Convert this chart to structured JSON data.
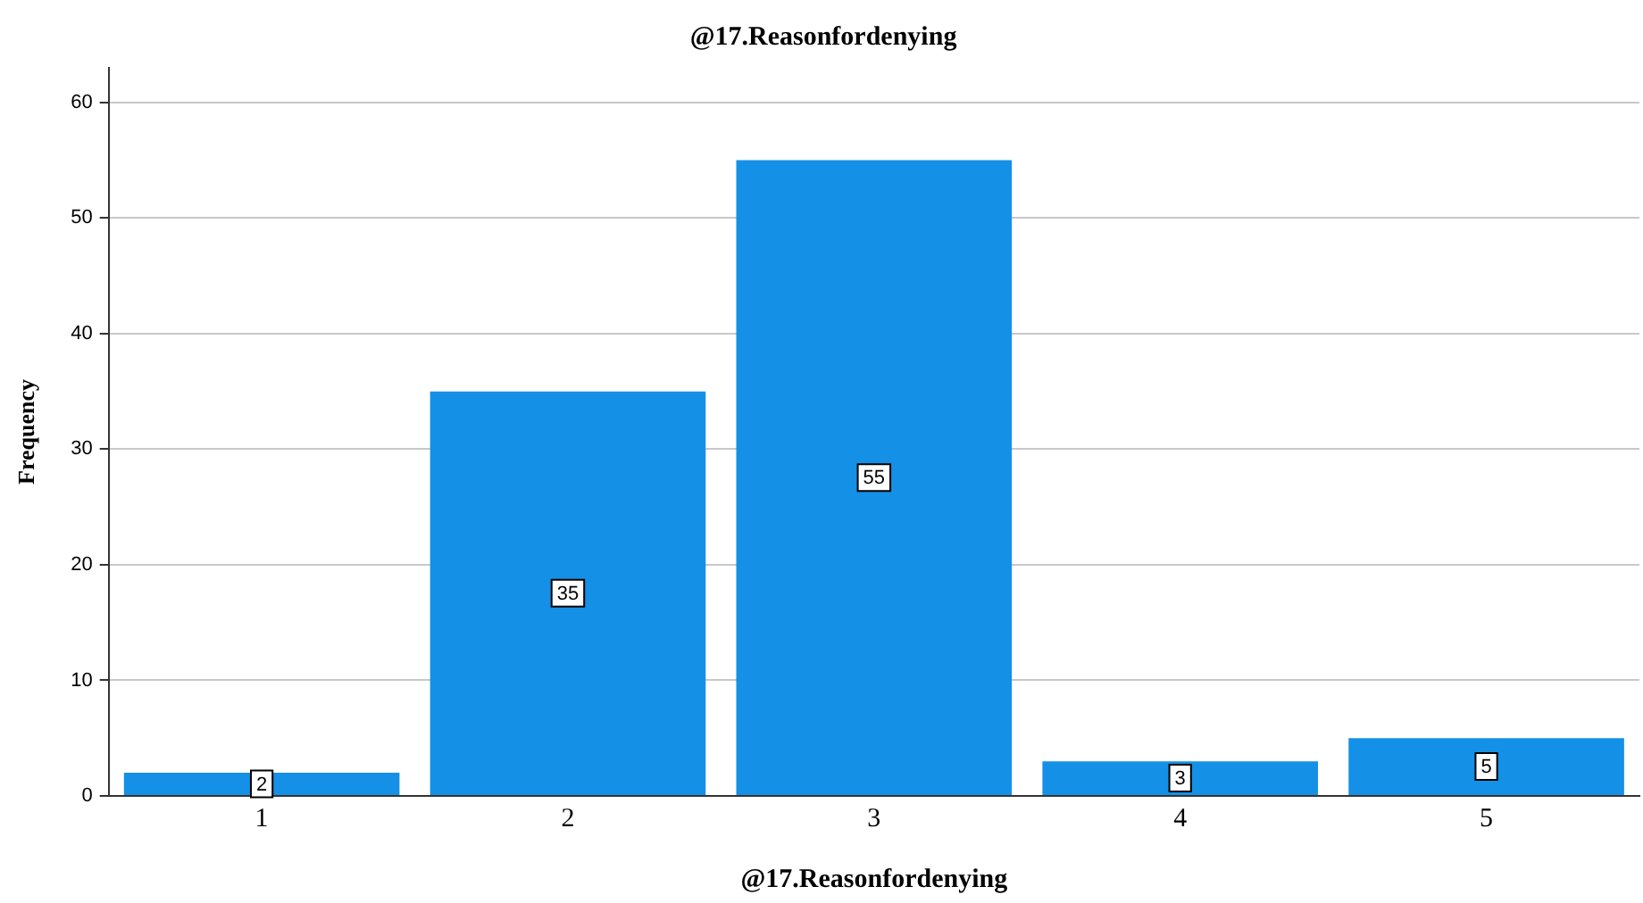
{
  "chart_data": {
    "type": "bar",
    "title": "@17.Reasonfordenying",
    "xlabel": "@17.Reasonfordenying",
    "ylabel": "Frequency",
    "categories": [
      "1",
      "2",
      "3",
      "4",
      "5"
    ],
    "values": [
      2,
      35,
      55,
      3,
      5
    ],
    "color": "#1490e6",
    "ylim": [
      0,
      63
    ],
    "yticks": [
      0,
      10,
      20,
      30,
      40,
      50,
      60
    ],
    "grid": "y",
    "data_labels": true,
    "legend": false
  }
}
